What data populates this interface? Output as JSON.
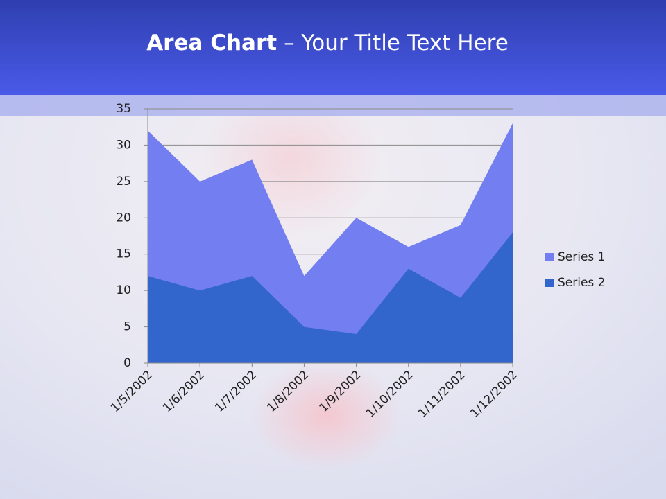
{
  "chart_data": {
    "type": "area",
    "title": [
      "Area Chart",
      "– Your Title Text Here"
    ],
    "categories": [
      "1/5/2002",
      "1/6/2002",
      "1/7/2002",
      "1/8/2002",
      "1/9/2002",
      "1/10/2002",
      "1/11/2002",
      "1/12/2002"
    ],
    "series": [
      {
        "name": "Series 1",
        "color": "#737ff0",
        "values": [
          32,
          25,
          28,
          12,
          20,
          16,
          19,
          33
        ]
      },
      {
        "name": "Series 2",
        "color": "#3366cc",
        "values": [
          12,
          10,
          12,
          5,
          4,
          13,
          9,
          18
        ]
      }
    ],
    "ylim": [
      0,
      35
    ],
    "yticks": [
      0,
      5,
      10,
      15,
      20,
      25,
      30,
      35
    ],
    "grid": true,
    "legend": "right"
  }
}
